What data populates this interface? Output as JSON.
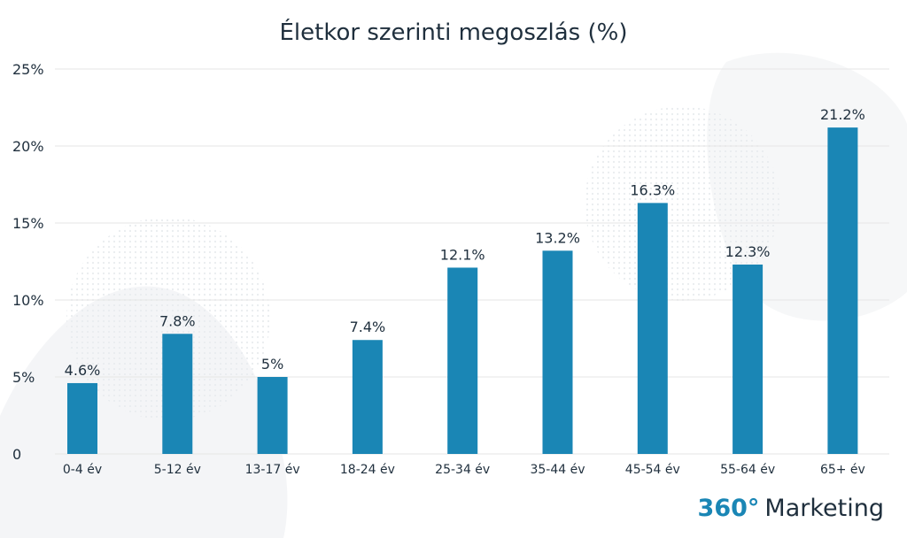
{
  "chart_data": {
    "type": "bar",
    "title": "Életkor szerinti megoszlás (%)",
    "categories": [
      "0-4 év",
      "5-12 év",
      "13-17 év",
      "18-24 év",
      "25-34 év",
      "35-44 év",
      "45-54 év",
      "55-64 év",
      "65+ év"
    ],
    "values": [
      4.6,
      7.8,
      5,
      7.4,
      12.1,
      13.2,
      16.3,
      12.3,
      21.2
    ],
    "value_labels": [
      "4.6%",
      "7.8%",
      "5%",
      "7.4%",
      "12.1%",
      "13.2%",
      "16.3%",
      "12.3%",
      "21.2%"
    ],
    "y_ticks": [
      0,
      5,
      10,
      15,
      20,
      25
    ],
    "y_tick_labels": [
      "0",
      "5%",
      "10%",
      "15%",
      "20%",
      "25%"
    ],
    "ylim": [
      0,
      25
    ],
    "grid": true,
    "bar_color": "#1a86b5",
    "text_color": "#1f2f3d",
    "grid_color": "#e6e6e6"
  },
  "branding": {
    "number": "360°",
    "name": "Marketing",
    "number_color": "#1a86b5"
  }
}
